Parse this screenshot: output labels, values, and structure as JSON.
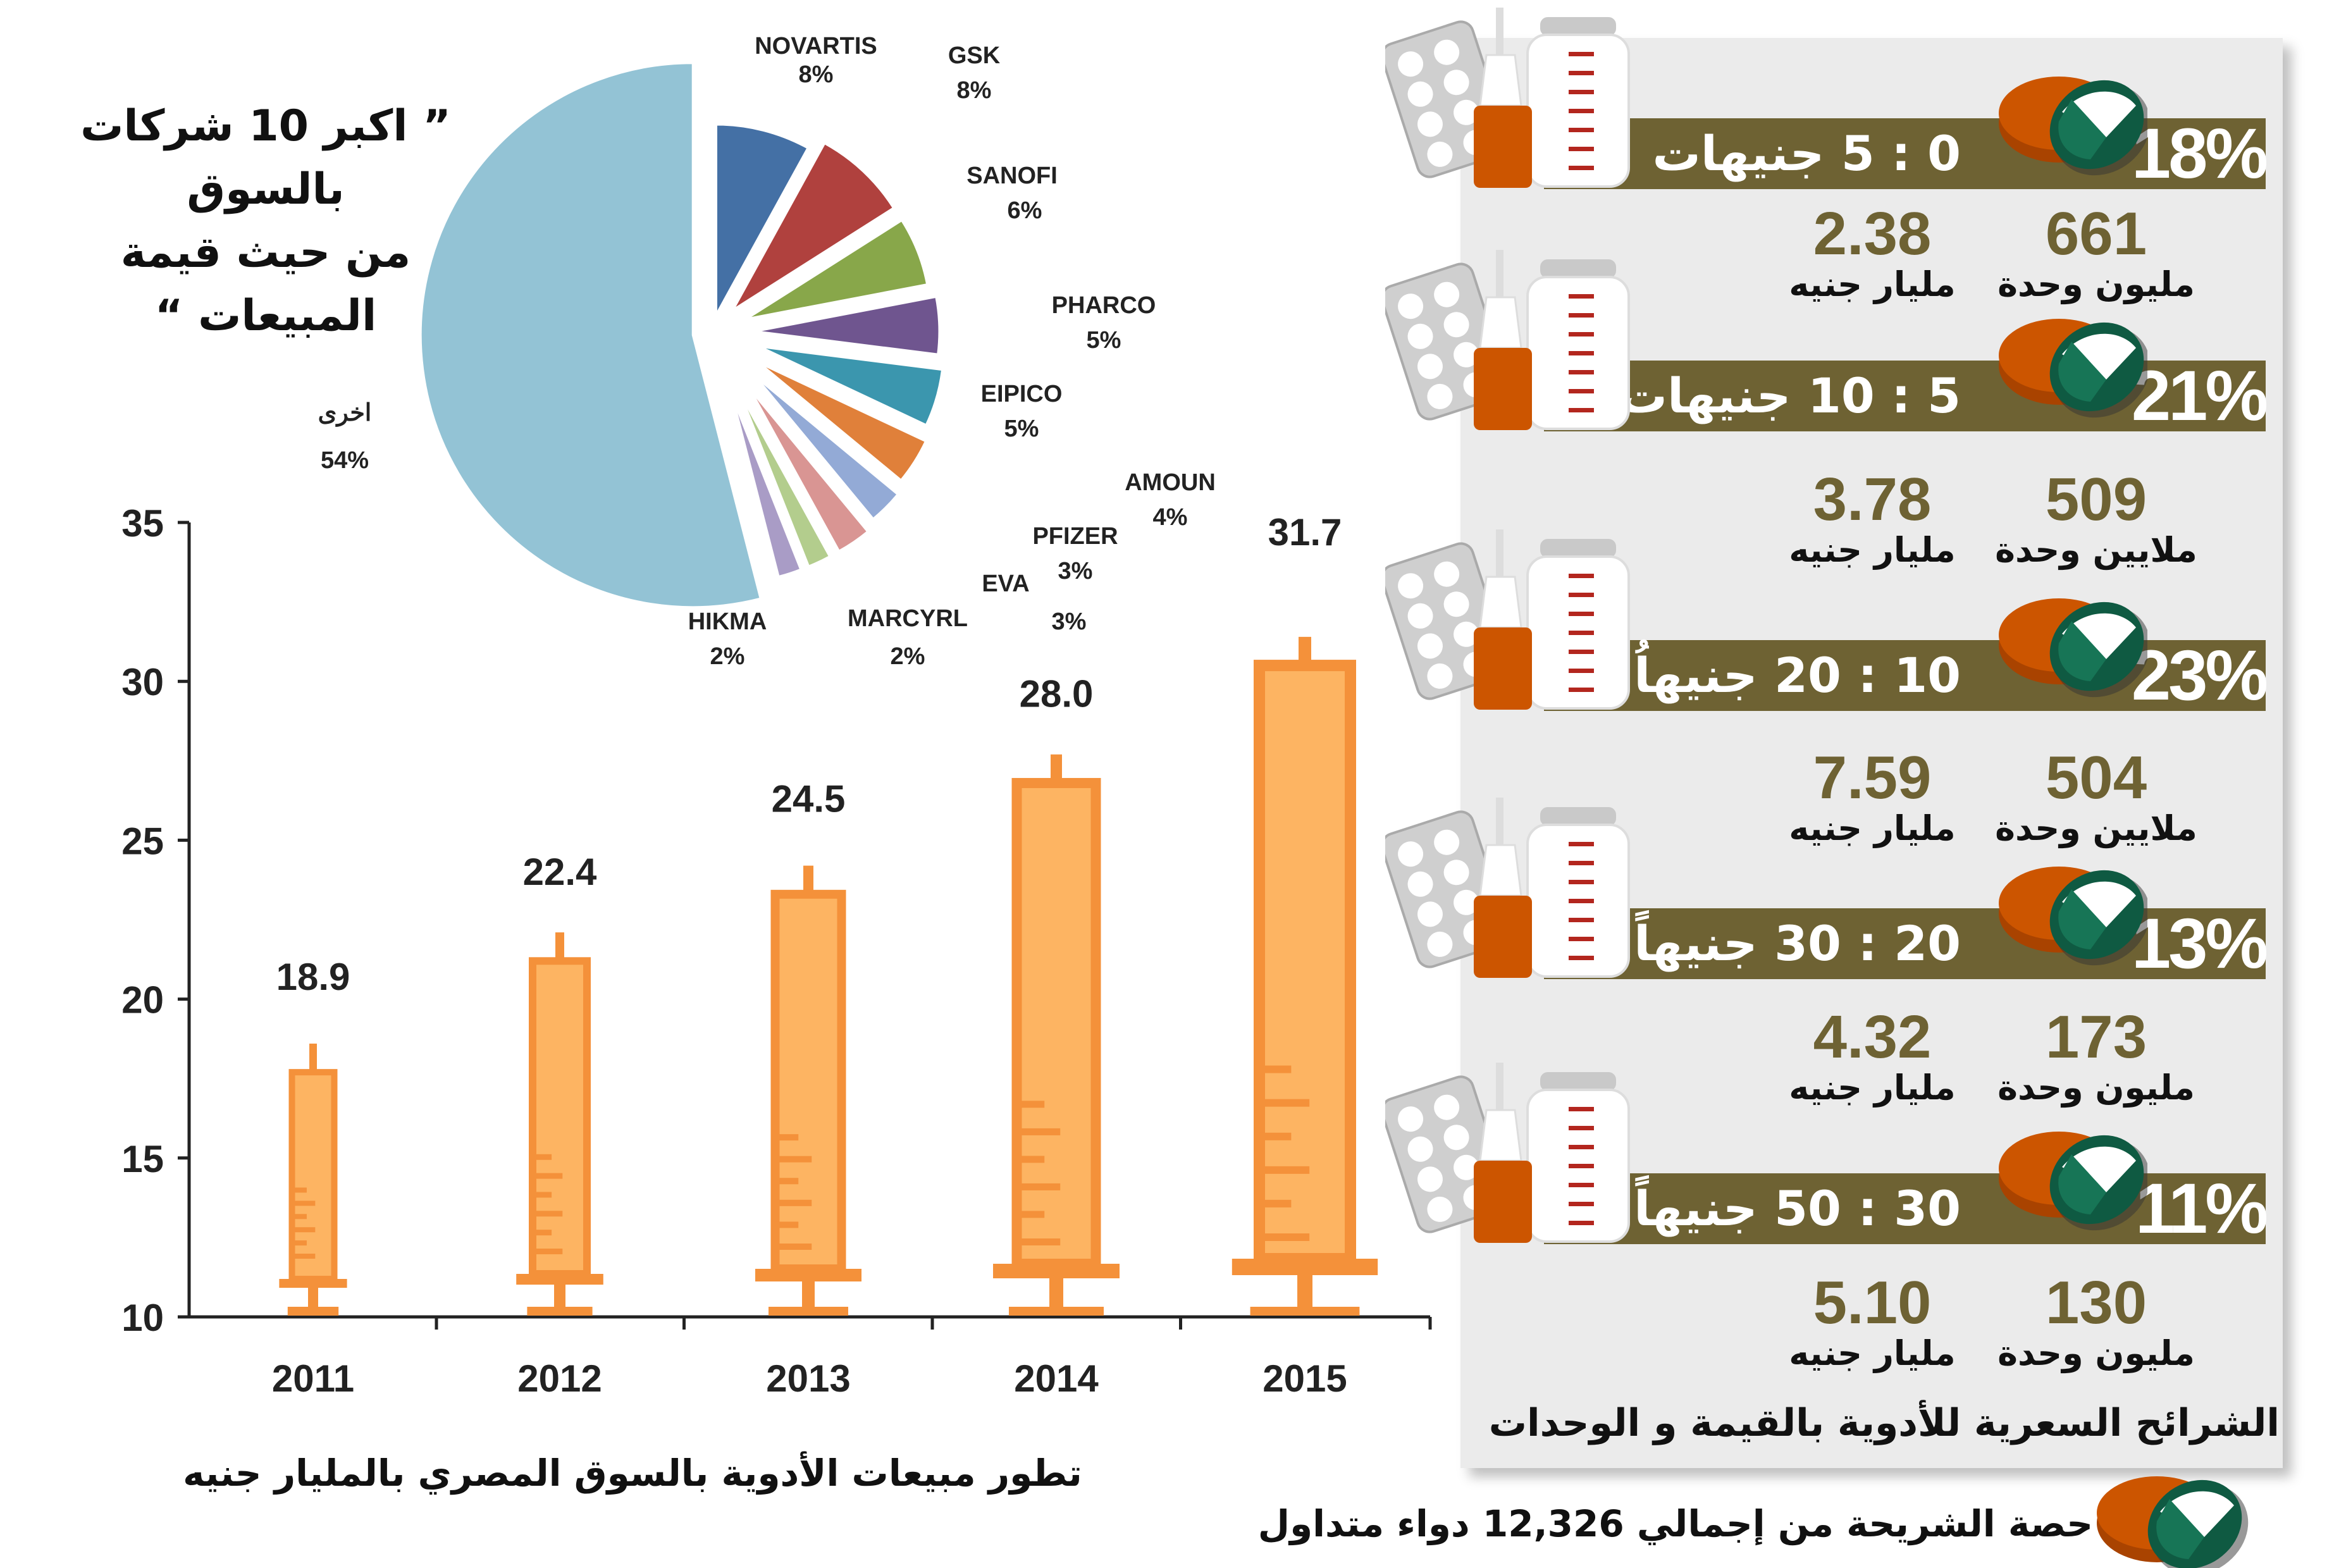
{
  "colors": {
    "olive": "#6e6233",
    "syringe_fill": "#fdb462",
    "syringe_stroke": "#f4913a",
    "panel": "#ebebeb",
    "pill_orange": "#cc5500",
    "pill_green": "#177556"
  },
  "pie_title": "” اكبر 10 شركات بالسوق من حيث قيمة المبيعات “",
  "pie_title_lines": [
    "” اكبر 10 شركات",
    "بالسوق",
    "من حيث قيمة",
    "المبيعات “"
  ],
  "bar_caption": "تطور مبيعات الأدوية بالسوق المصري بالمليار جنيه",
  "chart_data": [
    {
      "type": "bar",
      "mark": "syringe",
      "categories": [
        "2011",
        "2012",
        "2013",
        "2014",
        "2015"
      ],
      "values": [
        18.9,
        22.4,
        24.5,
        28.0,
        31.7
      ],
      "value_labels": [
        "18.9",
        "22.4",
        "24.5",
        "28.0",
        "31.7"
      ],
      "title": "تطور مبيعات الأدوية بالسوق المصري بالمليار جنيه",
      "xlabel": "",
      "ylabel": "",
      "ylim": [
        10,
        35
      ],
      "yticks": [
        10,
        15,
        20,
        25,
        30,
        35
      ],
      "grid": false
    },
    {
      "type": "pie",
      "exploded": true,
      "title": "” اكبر 10 شركات بالسوق من حيث قيمة المبيعات “",
      "slices": [
        {
          "label": "NOVARTIS",
          "value": 8,
          "pct": "8%",
          "color": "#4470a5"
        },
        {
          "label": "GSK",
          "value": 8,
          "pct": "8%",
          "color": "#b0413e"
        },
        {
          "label": "SANOFI",
          "value": 6,
          "pct": "6%",
          "color": "#88a74a"
        },
        {
          "label": "PHARCO",
          "value": 5,
          "pct": "5%",
          "color": "#6f558f"
        },
        {
          "label": "EIPICO",
          "value": 5,
          "pct": "5%",
          "color": "#3b96ae"
        },
        {
          "label": "AMOUN",
          "value": 4,
          "pct": "4%",
          "color": "#e0803a"
        },
        {
          "label": "PFIZER",
          "value": 3,
          "pct": "3%",
          "color": "#93aad6"
        },
        {
          "label": "EVA",
          "value": 3,
          "pct": "3%",
          "color": "#d99593"
        },
        {
          "label": "MARCYRL",
          "value": 2,
          "pct": "2%",
          "color": "#b3cd8d"
        },
        {
          "label": "HIKMA",
          "value": 2,
          "pct": "2%",
          "color": "#a99cc6"
        },
        {
          "label": "اخرى",
          "value": 54,
          "pct": "54%",
          "color": "#93c3d5"
        }
      ]
    }
  ],
  "segments": {
    "caption": "الشرائح السعرية للأدوية بالقيمة و الوحدات",
    "legend": "حصة الشريحة من إجمالي 12,326 دواء متداول",
    "rows": [
      {
        "range": "0 : 5 جنيهات",
        "share": "18%",
        "value": "2.38",
        "value_unit": "مليار جنيه",
        "units": "661",
        "units_unit": "مليون وحدة"
      },
      {
        "range": "5 : 10 جنيهات",
        "share": "21%",
        "value": "3.78",
        "value_unit": "مليار جنيه",
        "units": "509",
        "units_unit": "ملايين وحدة"
      },
      {
        "range": "10 : 20 جنيهاُ",
        "share": "23%",
        "value": "7.59",
        "value_unit": "مليار جنيه",
        "units": "504",
        "units_unit": "ملايين وحدة"
      },
      {
        "range": "20 : 30 جنيهاً",
        "share": "13%",
        "value": "4.32",
        "value_unit": "مليار جنيه",
        "units": "173",
        "units_unit": "مليون وحدة"
      },
      {
        "range": "30 : 50 جنيهاً",
        "share": "11%",
        "value": "5.10",
        "value_unit": "مليار جنيه",
        "units": "130",
        "units_unit": "مليون وحدة"
      }
    ]
  }
}
